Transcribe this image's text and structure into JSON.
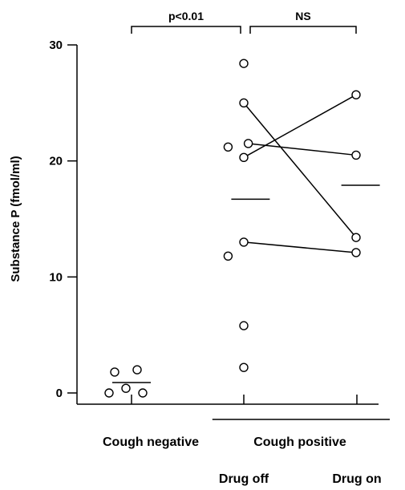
{
  "chart_data": {
    "type": "scatter",
    "ylabel": "Substance P (fmol/ml)",
    "ylim": [
      0,
      30
    ],
    "yticks": [
      0,
      10,
      20,
      30
    ],
    "grid": false,
    "groups": [
      {
        "id": "cough-negative",
        "label": "Cough negative",
        "sublabel": "",
        "x_position": 1,
        "points": [
          {
            "x": 0.85,
            "y": 1.8
          },
          {
            "x": 1.05,
            "y": 2.0
          },
          {
            "x": 0.8,
            "y": 0.0
          },
          {
            "x": 0.95,
            "y": 0.4
          },
          {
            "x": 1.1,
            "y": 0.0
          }
        ],
        "mean": 0.9
      },
      {
        "id": "drug-off",
        "label": "Cough positive",
        "sublabel": "Drug off",
        "x_position": 2,
        "points": [
          {
            "x": 2.0,
            "y": 28.4
          },
          {
            "x": 2.0,
            "y": 25.0
          },
          {
            "x": 1.86,
            "y": 21.2
          },
          {
            "x": 2.04,
            "y": 21.5
          },
          {
            "x": 2.0,
            "y": 20.3
          },
          {
            "x": 2.0,
            "y": 13.0
          },
          {
            "x": 1.86,
            "y": 11.8
          },
          {
            "x": 2.0,
            "y": 5.8
          },
          {
            "x": 2.0,
            "y": 2.2
          }
        ],
        "mean": 16.7
      },
      {
        "id": "drug-on",
        "label": "",
        "sublabel": "Drug on",
        "x_position": 3,
        "points": [
          {
            "x": 3.0,
            "y": 25.7
          },
          {
            "x": 3.0,
            "y": 20.5
          },
          {
            "x": 3.0,
            "y": 13.4
          },
          {
            "x": 3.0,
            "y": 12.1
          }
        ],
        "mean": 17.9
      }
    ],
    "paired_lines": [
      {
        "from": {
          "x": 2.04,
          "y": 21.5
        },
        "to": {
          "x": 3.0,
          "y": 20.5
        }
      },
      {
        "from": {
          "x": 2.0,
          "y": 20.3
        },
        "to": {
          "x": 3.0,
          "y": 25.7
        }
      },
      {
        "from": {
          "x": 2.0,
          "y": 25.0
        },
        "to": {
          "x": 3.0,
          "y": 13.4
        }
      },
      {
        "from": {
          "x": 2.0,
          "y": 13.0
        },
        "to": {
          "x": 3.0,
          "y": 12.1
        }
      }
    ],
    "comparisons": [
      {
        "label": "p<0.01",
        "from_x": 1,
        "to_x": 2
      },
      {
        "label": "NS",
        "from_x": 2,
        "to_x": 3
      }
    ],
    "bracket_under": {
      "from_x": 1.72,
      "to_x": 3.3
    }
  }
}
